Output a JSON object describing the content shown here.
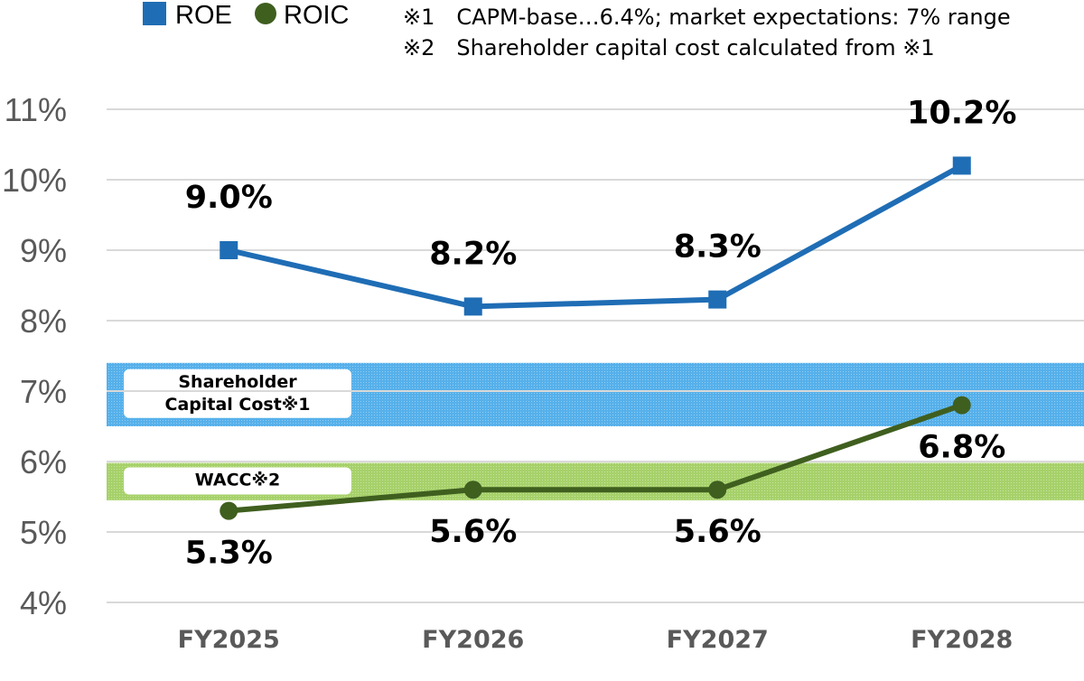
{
  "chart_data": {
    "type": "line",
    "categories": [
      "FY2025",
      "FY2026",
      "FY2027",
      "FY2028"
    ],
    "ylim": [
      4,
      11
    ],
    "yticks": [
      4,
      5,
      6,
      7,
      8,
      9,
      10,
      11
    ],
    "ytick_format": "%",
    "grid": true,
    "legend": {
      "position": "top-left"
    },
    "series": [
      {
        "name": "ROE",
        "color": "#1f6db5",
        "marker": "square",
        "values": [
          9.0,
          8.2,
          8.3,
          10.2
        ],
        "labels": [
          "9.0%",
          "8.2%",
          "8.3%",
          "10.2%"
        ],
        "label_position": "above"
      },
      {
        "name": "ROIC",
        "color": "#3f5f1f",
        "marker": "circle",
        "values": [
          5.3,
          5.6,
          5.6,
          6.8
        ],
        "labels": [
          "5.3%",
          "5.6%",
          "5.6%",
          "6.8%"
        ],
        "label_position": "below"
      }
    ],
    "bands": [
      {
        "label_lines": [
          "Shareholder",
          "Capital Cost※1"
        ],
        "range": [
          6.5,
          7.4
        ],
        "color": "#56b0ea"
      },
      {
        "label_lines": [
          "WACC※2"
        ],
        "range": [
          5.45,
          5.98
        ],
        "color": "#a6d16a"
      }
    ],
    "notes": [
      "※1　CAPM-base…6.4%; market expectations: 7% range",
      "※2　Shareholder capital cost calculated from ※1"
    ]
  }
}
